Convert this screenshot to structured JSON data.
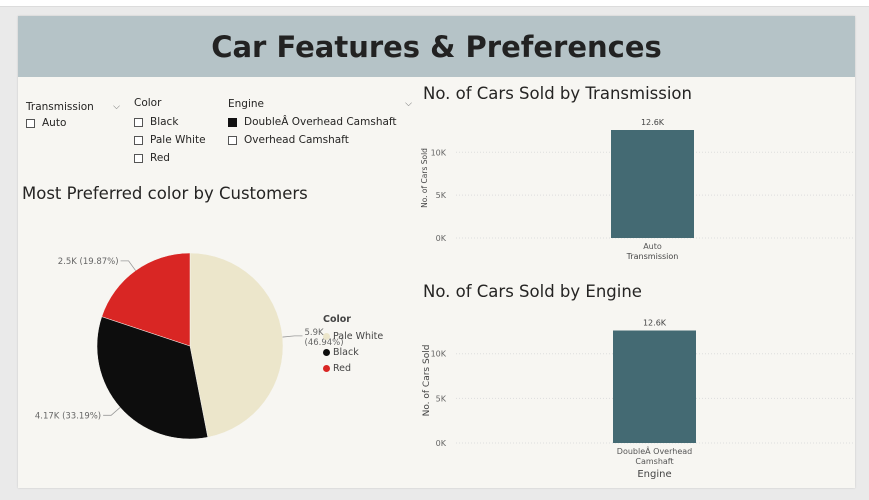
{
  "report": {
    "title": "Car Features & Preferences"
  },
  "slicers": {
    "transmission": {
      "title": "Transmission",
      "items": [
        {
          "label": "Auto",
          "checked": false
        }
      ]
    },
    "color": {
      "title": "Color",
      "items": [
        {
          "label": "Black",
          "checked": false
        },
        {
          "label": "Pale White",
          "checked": false
        },
        {
          "label": "Red",
          "checked": false
        }
      ]
    },
    "engine": {
      "title": "Engine",
      "items": [
        {
          "label": "DoubleÂ Overhead Camshaft",
          "checked": true
        },
        {
          "label": "Overhead Camshaft",
          "checked": false
        }
      ]
    }
  },
  "colors": {
    "bar": "#446a73",
    "pale_white": "#ece6cb",
    "black": "#0d0d0d",
    "red": "#d92624",
    "header_bg": "#b5c3c7"
  },
  "charts": {
    "pie": {
      "title": "Most Preferred color by Customers",
      "legend_title": "Color",
      "legend": [
        "Pale White",
        "Black",
        "Red"
      ]
    },
    "transmission": {
      "title": "No. of Cars Sold by Transmission",
      "ylabel": "No. of Cars Sold",
      "xlabel": "Transmission",
      "ticks": [
        "0K",
        "5K",
        "10K"
      ],
      "category": "Auto",
      "data_label": "12.6K"
    },
    "engine": {
      "title": "No. of Cars Sold by Engine",
      "ylabel": "No. of Cars Sold",
      "xlabel": "Engine",
      "ticks": [
        "0K",
        "5K",
        "10K"
      ],
      "category_line1": "DoubleÂ Overhead",
      "category_line2": "Camshaft",
      "data_label": "12.6K"
    }
  },
  "chart_data": [
    {
      "type": "pie",
      "title": "Most Preferred color by Customers",
      "categories": [
        "Pale White",
        "Black",
        "Red"
      ],
      "values": [
        5900,
        4170,
        2500
      ],
      "labels": [
        {
          "value": "5.9K",
          "percent": "(46.94%)"
        },
        {
          "value": "4.17K",
          "percent": "(33.19%)"
        },
        {
          "value": "2.5K",
          "percent": "(19.87%)"
        }
      ],
      "legend_title": "Color",
      "legend_position": "right"
    },
    {
      "type": "bar",
      "title": "No. of Cars Sold by Transmission",
      "categories": [
        "Auto"
      ],
      "values": [
        12600
      ],
      "xlabel": "Transmission",
      "ylabel": "No. of Cars Sold",
      "ylim": [
        0,
        14000
      ],
      "yticks": [
        0,
        5000,
        10000
      ],
      "grid": true
    },
    {
      "type": "bar",
      "title": "No. of Cars Sold by Engine",
      "categories": [
        "DoubleÂ Overhead Camshaft"
      ],
      "values": [
        12600
      ],
      "xlabel": "Engine",
      "ylabel": "No. of Cars Sold",
      "ylim": [
        0,
        14000
      ],
      "yticks": [
        0,
        5000,
        10000
      ],
      "grid": true
    }
  ]
}
